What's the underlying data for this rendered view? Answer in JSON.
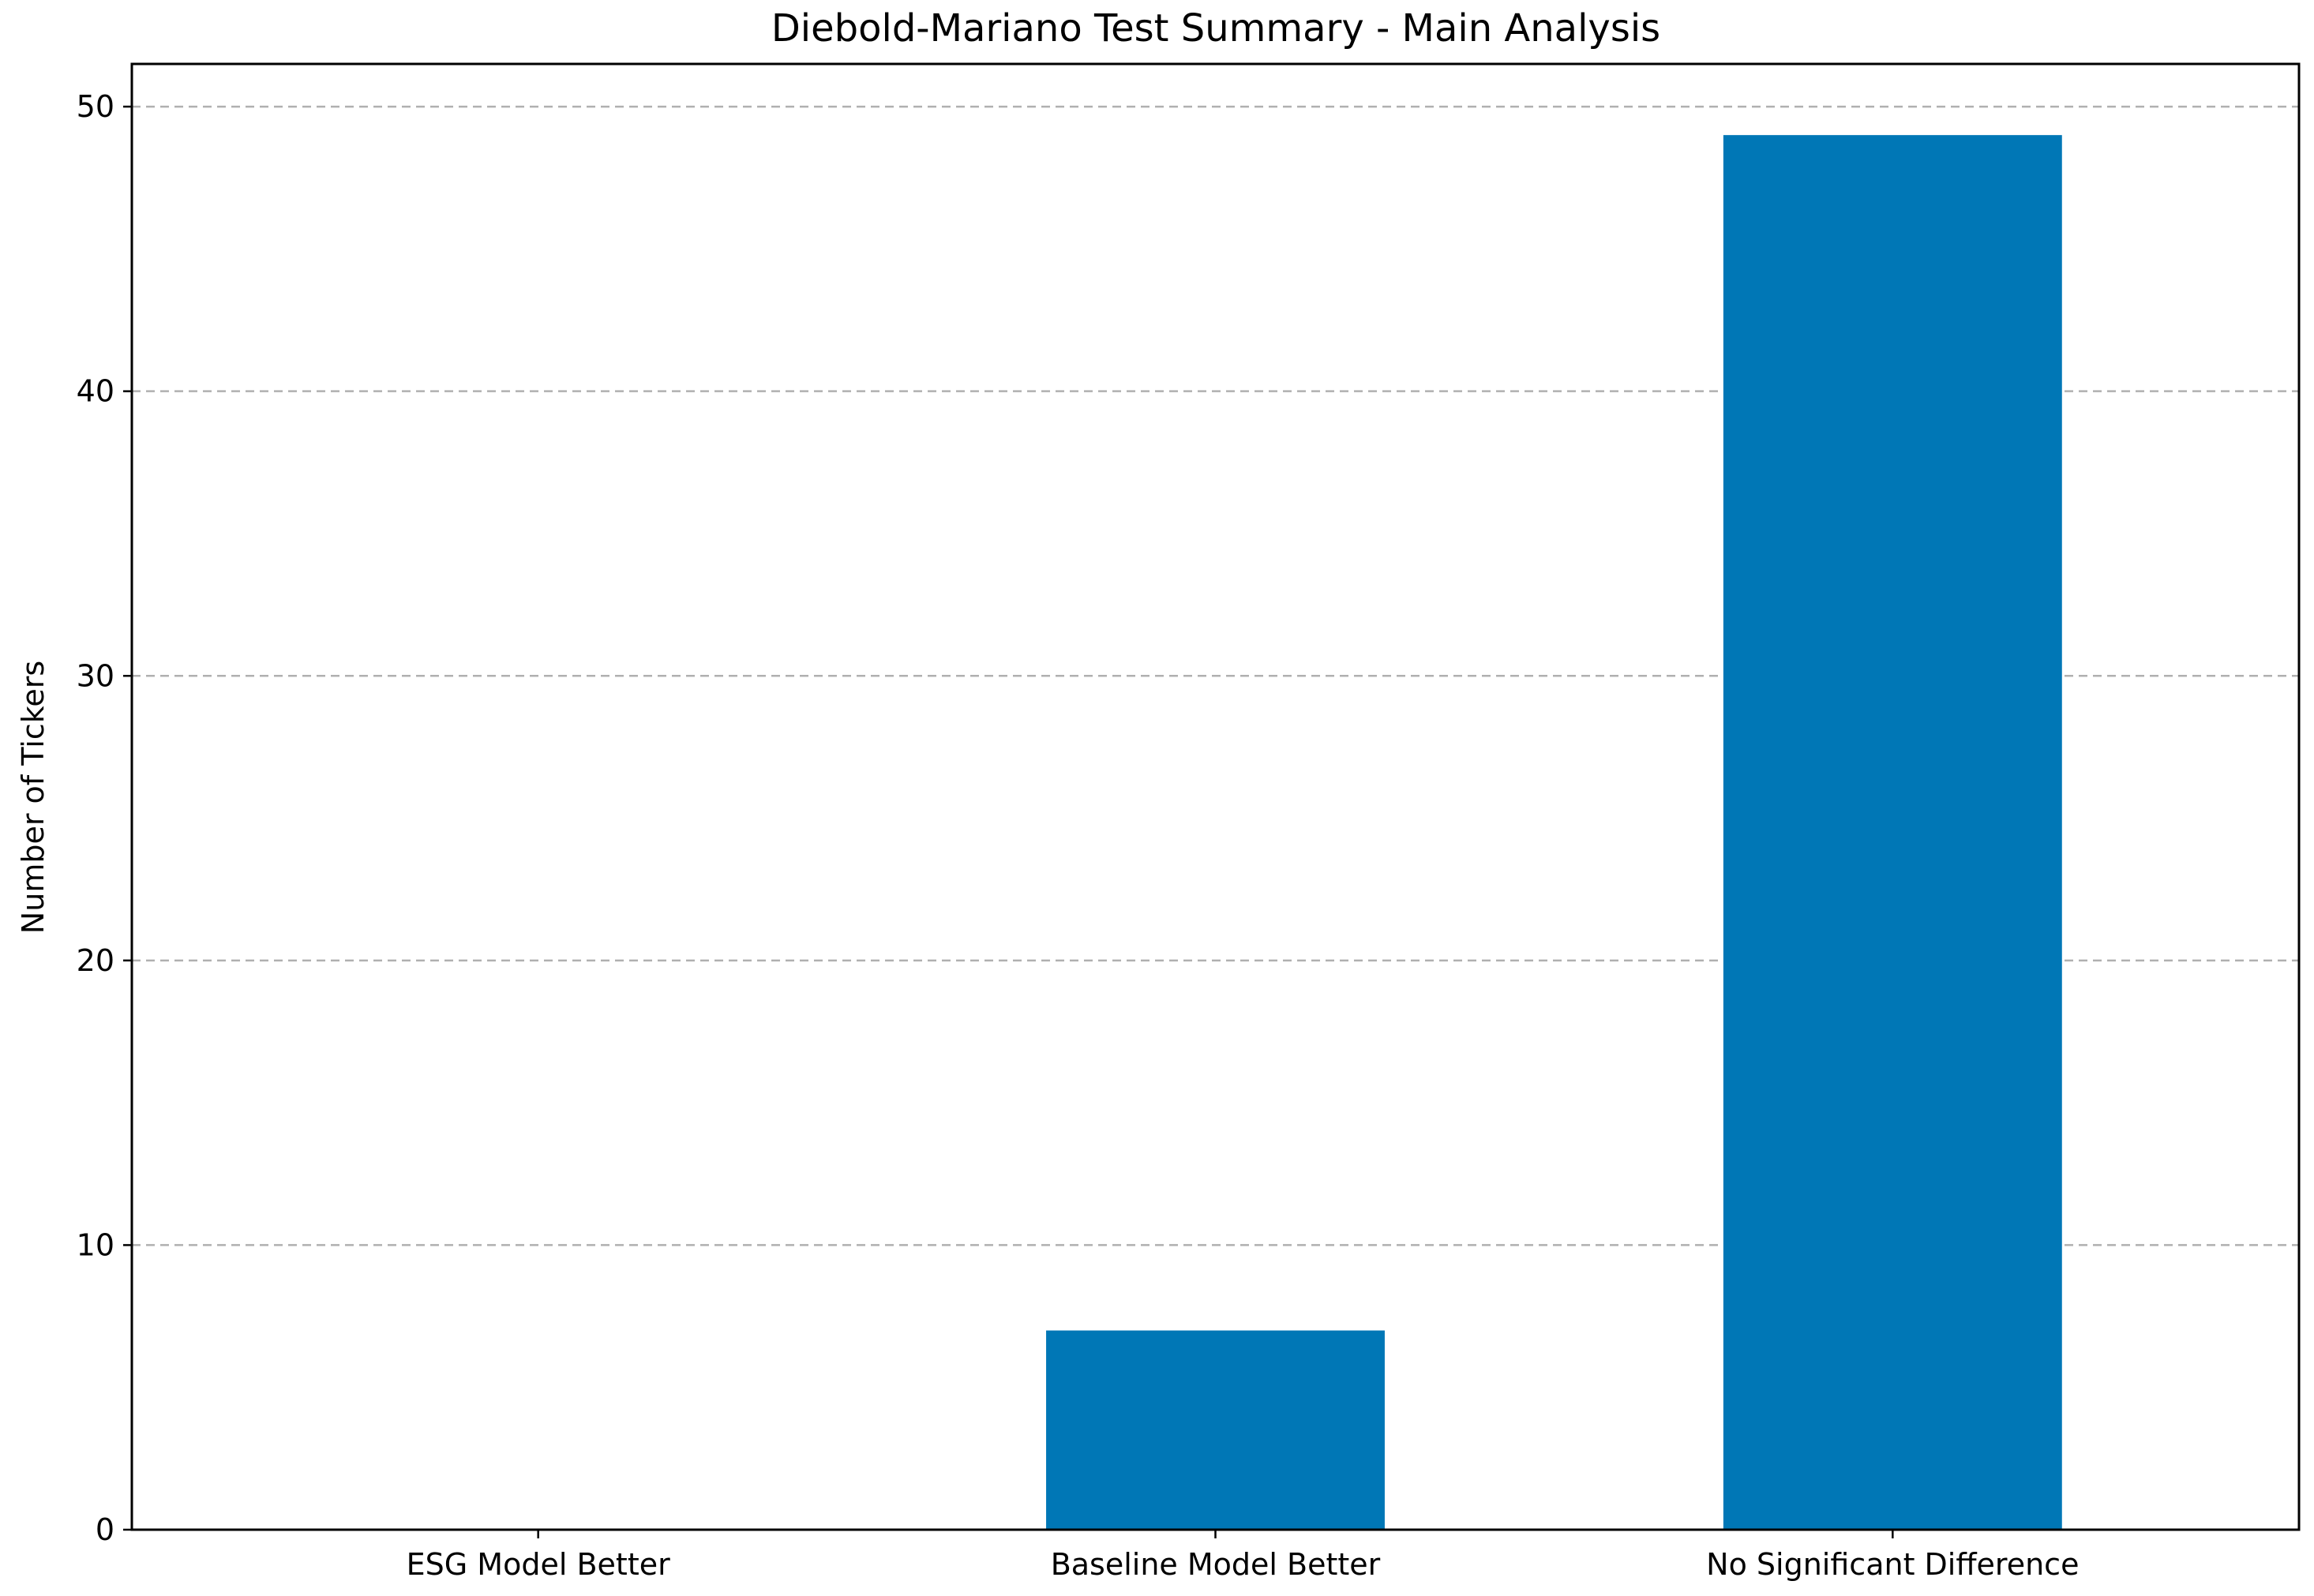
{
  "chart_data": {
    "type": "bar",
    "title": "Diebold-Mariano Test Summary - Main Analysis",
    "xlabel": "",
    "ylabel": "Number of Tickers",
    "categories": [
      "ESG Model Better",
      "Baseline Model Better",
      "No Significant Difference"
    ],
    "values": [
      0,
      7,
      49
    ],
    "ylim": [
      0,
      51.5
    ],
    "yticks": [
      0,
      10,
      20,
      30,
      40,
      50
    ],
    "grid": "y-dashed",
    "bar_color": "#0077b6",
    "legend": "none"
  }
}
